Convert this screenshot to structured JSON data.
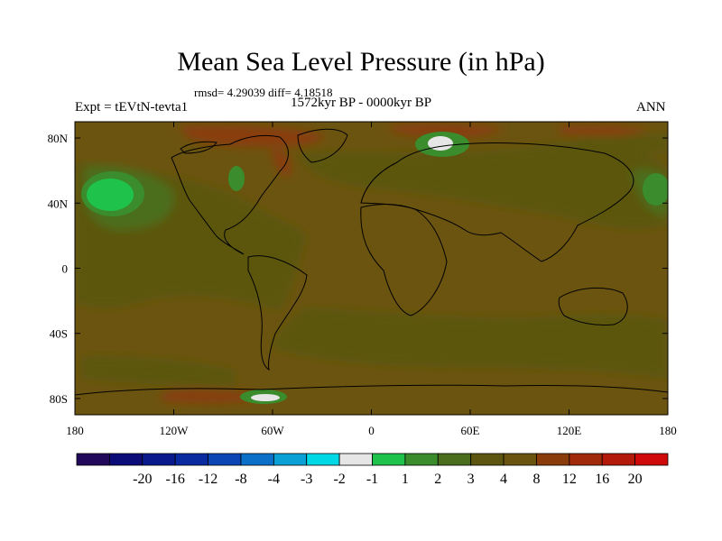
{
  "title": "Mean Sea Level Pressure (in hPa)",
  "stats": "rmsd= 4.29039  diff= 4.18518",
  "experiment": "Expt = tEVtN-tevta1",
  "period": "1572kyr BP - 0000kyr BP",
  "season": "ANN",
  "map": {
    "projection": "cylindrical equidistant",
    "background_color": "#6b5410",
    "x_ticks": [
      {
        "value": -180,
        "label": "180"
      },
      {
        "value": -120,
        "label": "120W"
      },
      {
        "value": -60,
        "label": "60W"
      },
      {
        "value": 0,
        "label": "0"
      },
      {
        "value": 60,
        "label": "60E"
      },
      {
        "value": 120,
        "label": "120E"
      },
      {
        "value": 180,
        "label": "180"
      }
    ],
    "y_ticks": [
      {
        "value": 80,
        "label": "80N"
      },
      {
        "value": 40,
        "label": "40N"
      },
      {
        "value": 0,
        "label": "0"
      },
      {
        "value": -40,
        "label": "40S"
      },
      {
        "value": -80,
        "label": "80S"
      }
    ]
  },
  "colorbar": {
    "colors": [
      "#21085a",
      "#0c0c78",
      "#0a1a8c",
      "#0a2aa0",
      "#0c46b4",
      "#0a70c8",
      "#0aa0d6",
      "#00d8e6",
      "#e6e6e6",
      "#1fc24a",
      "#3a8c2c",
      "#4b6e1e",
      "#5c5610",
      "#6b5410",
      "#8a3c0a",
      "#a02a0a",
      "#b41a0a",
      "#d00a0a"
    ],
    "labels": [
      "-20",
      "-16",
      "-12",
      "-8",
      "-4",
      "-3",
      "-2",
      "-1",
      "1",
      "2",
      "3",
      "4",
      "8",
      "12",
      "16",
      "20"
    ]
  }
}
